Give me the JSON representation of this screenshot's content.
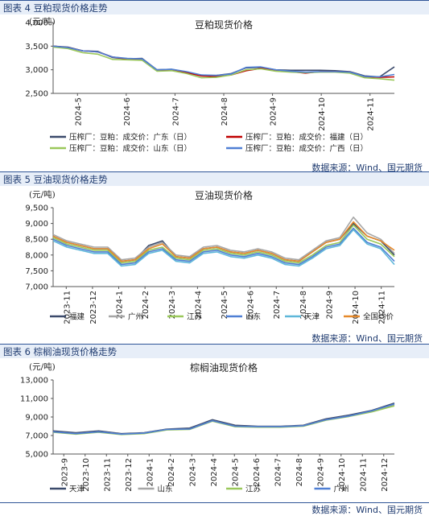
{
  "source_text": "数据来源：Wind、国元期货",
  "chart_data": [
    {
      "type": "line",
      "caption": "图表 4 豆粕现货价格走势",
      "title": "豆粕现货价格",
      "unit": "(元/吨)",
      "ylim": [
        2500,
        4000
      ],
      "yticks": [
        "4,000",
        "3,500",
        "3,000",
        "2,500"
      ],
      "ytick_values": [
        4000,
        3500,
        3000,
        2500
      ],
      "xlabels": [
        "2024-5",
        "2024-6",
        "2024-7",
        "2024-8",
        "2024-9",
        "2024-10",
        "2024-11"
      ],
      "x": [
        0,
        2,
        4,
        6,
        8,
        10,
        12,
        14,
        16,
        18,
        20,
        22,
        24,
        26,
        28,
        30,
        32,
        34,
        36,
        38,
        40,
        42,
        44,
        46
      ],
      "series": [
        {
          "name": "压榨厂：豆粕：成交价：广东（日）",
          "color": "#3b4a6b",
          "values": [
            3500,
            3480,
            3400,
            3390,
            3260,
            3230,
            3240,
            3000,
            3010,
            2950,
            2880,
            2880,
            2920,
            3040,
            3050,
            3000,
            2990,
            2990,
            2990,
            2980,
            2960,
            2870,
            2850,
            3060
          ]
        },
        {
          "name": "压榨厂：豆粕：成交价：福建（日）",
          "color": "#c00000",
          "values": [
            3500,
            3470,
            3400,
            3380,
            3270,
            3230,
            3220,
            2990,
            3000,
            2940,
            2870,
            2860,
            2890,
            2980,
            3030,
            2990,
            2960,
            2930,
            2960,
            2960,
            2950,
            2850,
            2840,
            2850
          ]
        },
        {
          "name": "压榨厂：豆粕：成交价：山东（日）",
          "color": "#9ac85a",
          "values": [
            3480,
            3450,
            3360,
            3330,
            3220,
            3210,
            3200,
            2970,
            2980,
            2920,
            2830,
            2840,
            2890,
            3000,
            3020,
            2970,
            2950,
            2940,
            2950,
            2950,
            2930,
            2830,
            2810,
            2780
          ]
        },
        {
          "name": "压榨厂：豆粕：成交价：广西（日）",
          "color": "#4f7fd4",
          "values": [
            3500,
            3470,
            3400,
            3380,
            3270,
            3240,
            3230,
            3000,
            3010,
            2960,
            2890,
            2880,
            2910,
            3050,
            3060,
            3000,
            2970,
            2950,
            2960,
            2960,
            2950,
            2860,
            2850,
            2900
          ]
        }
      ],
      "legend_cols": 2,
      "source": "数据来源：Wind、国元期货"
    },
    {
      "type": "line",
      "caption": "图表 5 豆油现货价格走势",
      "title": "豆油现货价格",
      "unit": "(元/吨)",
      "ylim": [
        7000,
        9500
      ],
      "yticks": [
        "9,500",
        "9,000",
        "8,500",
        "8,000",
        "7,500",
        "7,000"
      ],
      "ytick_values": [
        9500,
        9000,
        8500,
        8000,
        7500,
        7000
      ],
      "xlabels": [
        "2023-11",
        "2023-12",
        "2024-1",
        "2024-2",
        "2024-3",
        "2024-4",
        "2024-5",
        "2024-6",
        "2024-7",
        "2024-8",
        "2024-9",
        "2024-10",
        "2024-11"
      ],
      "x": [
        0,
        2,
        4,
        6,
        8,
        10,
        12,
        14,
        16,
        18,
        20,
        22,
        24,
        26,
        28,
        30,
        32,
        34,
        36,
        38,
        40,
        42,
        44,
        46,
        48,
        50
      ],
      "series": [
        {
          "name": "福建",
          "color": "#3b4a6b",
          "values": [
            8600,
            8400,
            8300,
            8200,
            8200,
            7800,
            7850,
            8300,
            8450,
            7950,
            7900,
            8200,
            8250,
            8100,
            8050,
            8150,
            8050,
            7850,
            7800,
            8100,
            8400,
            8500,
            9000,
            8600,
            8450,
            8000
          ]
        },
        {
          "name": "广州",
          "color": "#a6a6a6",
          "values": [
            8650,
            8450,
            8350,
            8250,
            8250,
            7850,
            7900,
            8250,
            8400,
            8000,
            7950,
            8250,
            8300,
            8150,
            8100,
            8200,
            8100,
            7900,
            7850,
            8150,
            8450,
            8550,
            9200,
            8700,
            8500,
            8050
          ]
        },
        {
          "name": "江苏",
          "color": "#9ac85a",
          "values": [
            8550,
            8350,
            8250,
            8150,
            8150,
            7750,
            7800,
            8150,
            8250,
            7900,
            7850,
            8150,
            8200,
            8050,
            8000,
            8100,
            8000,
            7800,
            7750,
            8000,
            8300,
            8400,
            8950,
            8500,
            8350,
            7950
          ]
        },
        {
          "name": "山东",
          "color": "#4f7fd4",
          "values": [
            8500,
            8300,
            8200,
            8100,
            8100,
            7700,
            7750,
            8100,
            8200,
            7850,
            7800,
            8100,
            8150,
            8000,
            7950,
            8050,
            7950,
            7750,
            7700,
            7950,
            8250,
            8350,
            8850,
            8400,
            8250,
            7800
          ]
        },
        {
          "name": "天津",
          "color": "#5fb7d9",
          "values": [
            8450,
            8250,
            8150,
            8050,
            8050,
            7650,
            7700,
            8050,
            8150,
            7800,
            7750,
            8050,
            8100,
            7950,
            7900,
            8000,
            7900,
            7700,
            7650,
            7900,
            8200,
            8300,
            8800,
            8350,
            8200,
            7700
          ]
        },
        {
          "name": "全国均价",
          "color": "#e6892b",
          "values": [
            8600,
            8400,
            8300,
            8200,
            8200,
            7800,
            7850,
            8200,
            8350,
            7950,
            7900,
            8200,
            8250,
            8100,
            8050,
            8150,
            8050,
            7850,
            7800,
            8100,
            8400,
            8500,
            9050,
            8600,
            8450,
            8150
          ]
        }
      ],
      "legend_cols": 6,
      "source": "数据来源：Wind、国元期货"
    },
    {
      "type": "line",
      "caption": "图表 6 棕榈油现货价格走势",
      "title": "棕榈油现货价格",
      "unit": "(元/吨)",
      "ylim": [
        5000,
        13000
      ],
      "yticks": [
        "13,000",
        "11,000",
        "9,000",
        "7,000",
        "5,000"
      ],
      "ytick_values": [
        13000,
        11000,
        9000,
        7000,
        5000
      ],
      "xlabels": [
        "2023-9",
        "2023-10",
        "2023-11",
        "2023-12",
        "2024-1",
        "2024-2",
        "2024-3",
        "2024-4",
        "2024-5",
        "2024-6",
        "2024-7",
        "2024-8",
        "2024-9",
        "2024-10",
        "2024-11",
        "2024-12"
      ],
      "x": [
        0,
        2,
        4,
        6,
        8,
        10,
        12,
        14,
        16,
        18,
        20,
        22,
        24,
        26,
        28,
        30
      ],
      "series": [
        {
          "name": "天津",
          "color": "#3b4a6b",
          "values": [
            7500,
            7300,
            7500,
            7200,
            7300,
            7700,
            7800,
            8700,
            8100,
            8000,
            8000,
            8100,
            8800,
            9200,
            9700,
            10500
          ]
        },
        {
          "name": "山东",
          "color": "#a6a6a6",
          "values": [
            7400,
            7200,
            7400,
            7150,
            7250,
            7650,
            7700,
            8600,
            8000,
            7950,
            7950,
            8050,
            8700,
            9100,
            9600,
            10300
          ]
        },
        {
          "name": "江苏",
          "color": "#9ac85a",
          "values": [
            7350,
            7150,
            7350,
            7100,
            7200,
            7600,
            7650,
            8550,
            7950,
            7900,
            7900,
            8000,
            8650,
            9050,
            9550,
            10200
          ]
        },
        {
          "name": "广州",
          "color": "#4f7fd4",
          "values": [
            7400,
            7200,
            7400,
            7150,
            7250,
            7650,
            7700,
            8600,
            8000,
            7950,
            7950,
            8050,
            8700,
            9100,
            9650,
            10400
          ]
        }
      ],
      "legend_cols": 4,
      "source": "数据来源：Wind、国元期货"
    }
  ]
}
